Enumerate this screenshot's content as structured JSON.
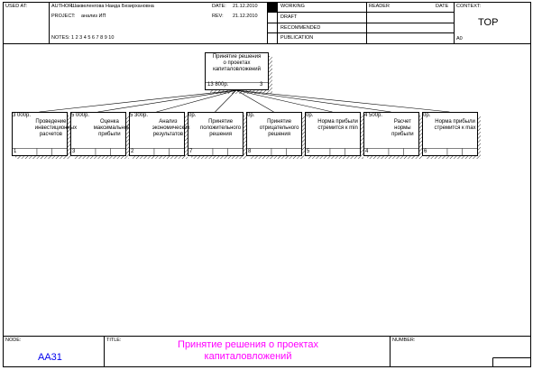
{
  "header": {
    "used_at": "USED AT:",
    "author_label": "AUTHOR:",
    "author_value": "Шаквеленгова Наида Безирхановна",
    "project_label": "PROJECT:",
    "project_value": "анализ ИП",
    "date_label": "DATE:",
    "date_value": "21.12.2010",
    "rev_label": "REV:",
    "rev_value": "21.12.2010",
    "notes": "NOTES:  1  2  3  4  5  6  7  8  9  10",
    "statuses": [
      "WORKING",
      "DRAFT",
      "RECOMMENDED",
      "PUBLICATION"
    ],
    "reader_label": "READER",
    "reader_date_label": "DATE",
    "context_label": "CONTEXT:",
    "context_value": "TOP",
    "context_node": "A0"
  },
  "diagram": {
    "root": {
      "lines": [
        "Принятие решения",
        "о проектах",
        "капиталовложений"
      ],
      "cost": "13 800р.",
      "number": "3"
    },
    "children": [
      {
        "cost": "3 000р.",
        "lines": [
          "Проведение",
          "инвестиционных",
          "расчетов"
        ],
        "number": "1"
      },
      {
        "cost": "5 000р.",
        "lines": [
          "Оценка",
          "максимальной",
          "прибыли"
        ],
        "number": "3"
      },
      {
        "cost": "5 300р.",
        "lines": [
          "Анализ",
          "экономических",
          "результатов"
        ],
        "number": "2"
      },
      {
        "cost": "0р.",
        "lines": [
          "Принятие",
          "положительного",
          "решения"
        ],
        "number": "7"
      },
      {
        "cost": "0р.",
        "lines": [
          "Принятие",
          "отрицательного",
          "решения"
        ],
        "number": "8"
      },
      {
        "cost": "0р.",
        "lines": [
          "Норма прибыли",
          "стремится к min"
        ],
        "number": "5"
      },
      {
        "cost": "4 500р.",
        "lines": [
          "Расчет",
          "нормы",
          "прибыли"
        ],
        "number": "4"
      },
      {
        "cost": "0р.",
        "lines": [
          "Норма прибыли",
          "стремится к max"
        ],
        "number": "6"
      }
    ]
  },
  "footer": {
    "node_label": "NODE:",
    "node_value": "AA31",
    "title_label": "TITLE:",
    "title_value": "Принятие решения о проектах капиталовложений",
    "number_label": "NUMBER:"
  },
  "colors": {
    "node_code": "#0000ee",
    "title": "#ff00ff",
    "working_marker": "#000000"
  }
}
